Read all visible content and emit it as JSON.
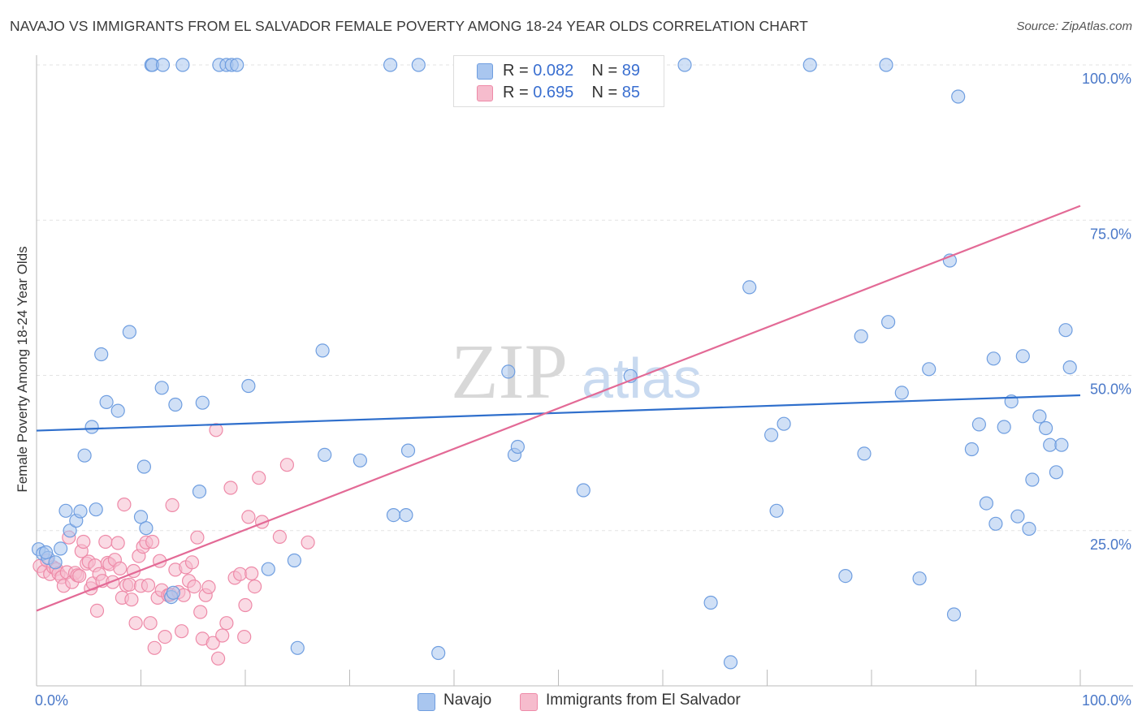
{
  "header": {
    "title": "NAVAJO VS IMMIGRANTS FROM EL SALVADOR FEMALE POVERTY AMONG 18-24 YEAR OLDS CORRELATION CHART",
    "source": "Source: ZipAtlas.com"
  },
  "watermark": {
    "zip": "ZIP",
    "atlas": "atlas"
  },
  "legend": {
    "navajo": {
      "r_label": "R =",
      "r_value": "0.082",
      "n_label": "N =",
      "n_value": "89"
    },
    "salvador": {
      "r_label": "R =",
      "r_value": "0.695",
      "n_label": "N =",
      "n_value": "85"
    }
  },
  "bottom_legend": {
    "navajo": "Navajo",
    "salvador": "Immigrants from El Salvador"
  },
  "colors": {
    "navajo_fill": "#a9c6ef",
    "navajo_stroke": "#6f9ee0",
    "navajo_line": "#2f6fcc",
    "salvador_fill": "#f6bccd",
    "salvador_stroke": "#ee8aa8",
    "salvador_line": "#e36a96",
    "tick_text": "#4a78c8",
    "grid": "#e3e3e3"
  },
  "chart_data": {
    "type": "scatter",
    "title": "NAVAJO VS IMMIGRANTS FROM EL SALVADOR FEMALE POVERTY AMONG 18-24 YEAR OLDS CORRELATION CHART",
    "xlabel": "",
    "ylabel": "Female Poverty Among 18-24 Year Olds",
    "xlim": [
      0,
      100
    ],
    "ylim": [
      0,
      100
    ],
    "x_tick_labels": [
      "0.0%",
      "100.0%"
    ],
    "y_ticks": [
      25,
      50,
      75,
      100
    ],
    "y_tick_labels": [
      "25.0%",
      "50.0%",
      "75.0%",
      "100.0%"
    ],
    "grid": true,
    "series": [
      {
        "name": "Navajo",
        "R": 0.082,
        "N": 89,
        "trend": {
          "x": [
            0,
            100
          ],
          "y": [
            41.1,
            46.8
          ]
        },
        "points": [
          [
            0.2,
            22.0
          ],
          [
            0.6,
            21.3
          ],
          [
            1.1,
            20.6
          ],
          [
            1.8,
            19.9
          ],
          [
            0.9,
            21.5
          ],
          [
            2.3,
            22.1
          ],
          [
            2.8,
            28.2
          ],
          [
            3.2,
            25.0
          ],
          [
            3.8,
            26.6
          ],
          [
            4.2,
            28.1
          ],
          [
            4.6,
            37.1
          ],
          [
            5.3,
            41.7
          ],
          [
            5.7,
            28.4
          ],
          [
            6.2,
            53.4
          ],
          [
            6.7,
            45.7
          ],
          [
            7.8,
            44.3
          ],
          [
            8.9,
            57.0
          ],
          [
            10.0,
            27.2
          ],
          [
            10.3,
            35.3
          ],
          [
            10.5,
            25.4
          ],
          [
            11.0,
            100
          ],
          [
            11.1,
            100
          ],
          [
            12.0,
            48.0
          ],
          [
            12.1,
            100
          ],
          [
            12.9,
            14.3
          ],
          [
            13.1,
            15.0
          ],
          [
            13.3,
            45.3
          ],
          [
            14.0,
            100
          ],
          [
            15.9,
            45.6
          ],
          [
            15.6,
            31.3
          ],
          [
            17.5,
            100
          ],
          [
            18.2,
            100
          ],
          [
            18.7,
            100
          ],
          [
            19.2,
            100
          ],
          [
            20.3,
            48.3
          ],
          [
            22.2,
            18.8
          ],
          [
            24.7,
            20.2
          ],
          [
            25.0,
            6.1
          ],
          [
            27.4,
            54.0
          ],
          [
            27.6,
            37.2
          ],
          [
            31.0,
            36.3
          ],
          [
            33.9,
            100
          ],
          [
            34.2,
            27.5
          ],
          [
            35.4,
            27.5
          ],
          [
            35.6,
            37.9
          ],
          [
            36.6,
            100
          ],
          [
            38.5,
            5.3
          ],
          [
            45.2,
            50.6
          ],
          [
            45.8,
            37.2
          ],
          [
            46.1,
            38.5
          ],
          [
            52.4,
            31.5
          ],
          [
            56.9,
            49.9
          ],
          [
            62.1,
            100
          ],
          [
            64.6,
            13.4
          ],
          [
            66.5,
            3.8
          ],
          [
            68.3,
            64.2
          ],
          [
            70.4,
            40.4
          ],
          [
            70.9,
            28.2
          ],
          [
            71.6,
            42.2
          ],
          [
            74.1,
            100
          ],
          [
            77.5,
            17.7
          ],
          [
            79.0,
            56.3
          ],
          [
            79.3,
            37.4
          ],
          [
            81.4,
            100
          ],
          [
            81.6,
            58.6
          ],
          [
            82.9,
            47.2
          ],
          [
            84.6,
            17.3
          ],
          [
            85.5,
            51.0
          ],
          [
            87.5,
            68.5
          ],
          [
            87.9,
            11.5
          ],
          [
            88.3,
            94.9
          ],
          [
            89.6,
            38.1
          ],
          [
            90.3,
            42.1
          ],
          [
            91.0,
            29.4
          ],
          [
            91.7,
            52.7
          ],
          [
            91.9,
            26.1
          ],
          [
            92.7,
            41.7
          ],
          [
            93.4,
            45.8
          ],
          [
            94.0,
            27.3
          ],
          [
            94.5,
            53.1
          ],
          [
            95.1,
            25.3
          ],
          [
            95.4,
            33.2
          ],
          [
            96.1,
            43.4
          ],
          [
            96.7,
            41.5
          ],
          [
            97.1,
            38.8
          ],
          [
            97.7,
            34.4
          ],
          [
            98.2,
            38.8
          ],
          [
            98.6,
            57.3
          ],
          [
            99.0,
            51.3
          ]
        ]
      },
      {
        "name": "Immigrants from El Salvador",
        "R": 0.695,
        "N": 85,
        "trend": {
          "x": [
            0,
            100
          ],
          "y": [
            12.1,
            77.3
          ]
        },
        "points": [
          [
            0.3,
            19.3
          ],
          [
            0.7,
            18.4
          ],
          [
            1.0,
            20.2
          ],
          [
            1.3,
            18.0
          ],
          [
            1.6,
            19.1
          ],
          [
            1.9,
            18.8
          ],
          [
            2.1,
            18.1
          ],
          [
            2.4,
            17.5
          ],
          [
            2.6,
            16.1
          ],
          [
            2.9,
            18.3
          ],
          [
            3.1,
            23.9
          ],
          [
            3.4,
            16.7
          ],
          [
            3.7,
            18.2
          ],
          [
            3.9,
            17.8
          ],
          [
            4.1,
            17.7
          ],
          [
            4.3,
            21.7
          ],
          [
            4.5,
            23.2
          ],
          [
            4.8,
            19.7
          ],
          [
            5.0,
            20.0
          ],
          [
            5.2,
            15.7
          ],
          [
            5.4,
            16.5
          ],
          [
            5.6,
            19.4
          ],
          [
            5.8,
            12.1
          ],
          [
            6.0,
            18.0
          ],
          [
            6.3,
            16.9
          ],
          [
            6.6,
            23.2
          ],
          [
            6.8,
            19.8
          ],
          [
            7.0,
            19.6
          ],
          [
            7.3,
            16.7
          ],
          [
            7.5,
            20.3
          ],
          [
            7.8,
            23.0
          ],
          [
            8.0,
            18.9
          ],
          [
            8.2,
            14.2
          ],
          [
            8.4,
            29.2
          ],
          [
            8.6,
            16.2
          ],
          [
            8.9,
            16.3
          ],
          [
            9.1,
            13.9
          ],
          [
            9.3,
            18.5
          ],
          [
            9.5,
            10.1
          ],
          [
            9.8,
            20.9
          ],
          [
            10.0,
            16.1
          ],
          [
            10.2,
            22.4
          ],
          [
            10.5,
            23.1
          ],
          [
            10.7,
            16.2
          ],
          [
            10.9,
            10.1
          ],
          [
            11.1,
            23.2
          ],
          [
            11.3,
            6.1
          ],
          [
            11.6,
            14.2
          ],
          [
            11.8,
            20.1
          ],
          [
            12.0,
            15.4
          ],
          [
            12.3,
            7.9
          ],
          [
            12.6,
            14.6
          ],
          [
            12.8,
            14.7
          ],
          [
            13.0,
            29.1
          ],
          [
            13.3,
            18.7
          ],
          [
            13.6,
            15.1
          ],
          [
            13.9,
            8.8
          ],
          [
            14.1,
            14.6
          ],
          [
            14.3,
            19.1
          ],
          [
            14.6,
            16.9
          ],
          [
            14.9,
            19.9
          ],
          [
            15.1,
            16.0
          ],
          [
            15.4,
            23.9
          ],
          [
            15.7,
            11.9
          ],
          [
            15.9,
            7.6
          ],
          [
            16.2,
            14.6
          ],
          [
            16.5,
            15.9
          ],
          [
            16.9,
            6.9
          ],
          [
            17.2,
            41.2
          ],
          [
            17.4,
            4.4
          ],
          [
            17.8,
            8.1
          ],
          [
            18.2,
            10.1
          ],
          [
            18.6,
            31.9
          ],
          [
            19.0,
            17.4
          ],
          [
            19.5,
            18.0
          ],
          [
            19.9,
            7.9
          ],
          [
            20.0,
            13.0
          ],
          [
            20.3,
            27.2
          ],
          [
            20.6,
            18.1
          ],
          [
            20.9,
            16.0
          ],
          [
            21.3,
            33.5
          ],
          [
            21.6,
            26.4
          ],
          [
            23.3,
            24.0
          ],
          [
            24.0,
            35.6
          ],
          [
            26.0,
            23.1
          ]
        ]
      }
    ]
  }
}
